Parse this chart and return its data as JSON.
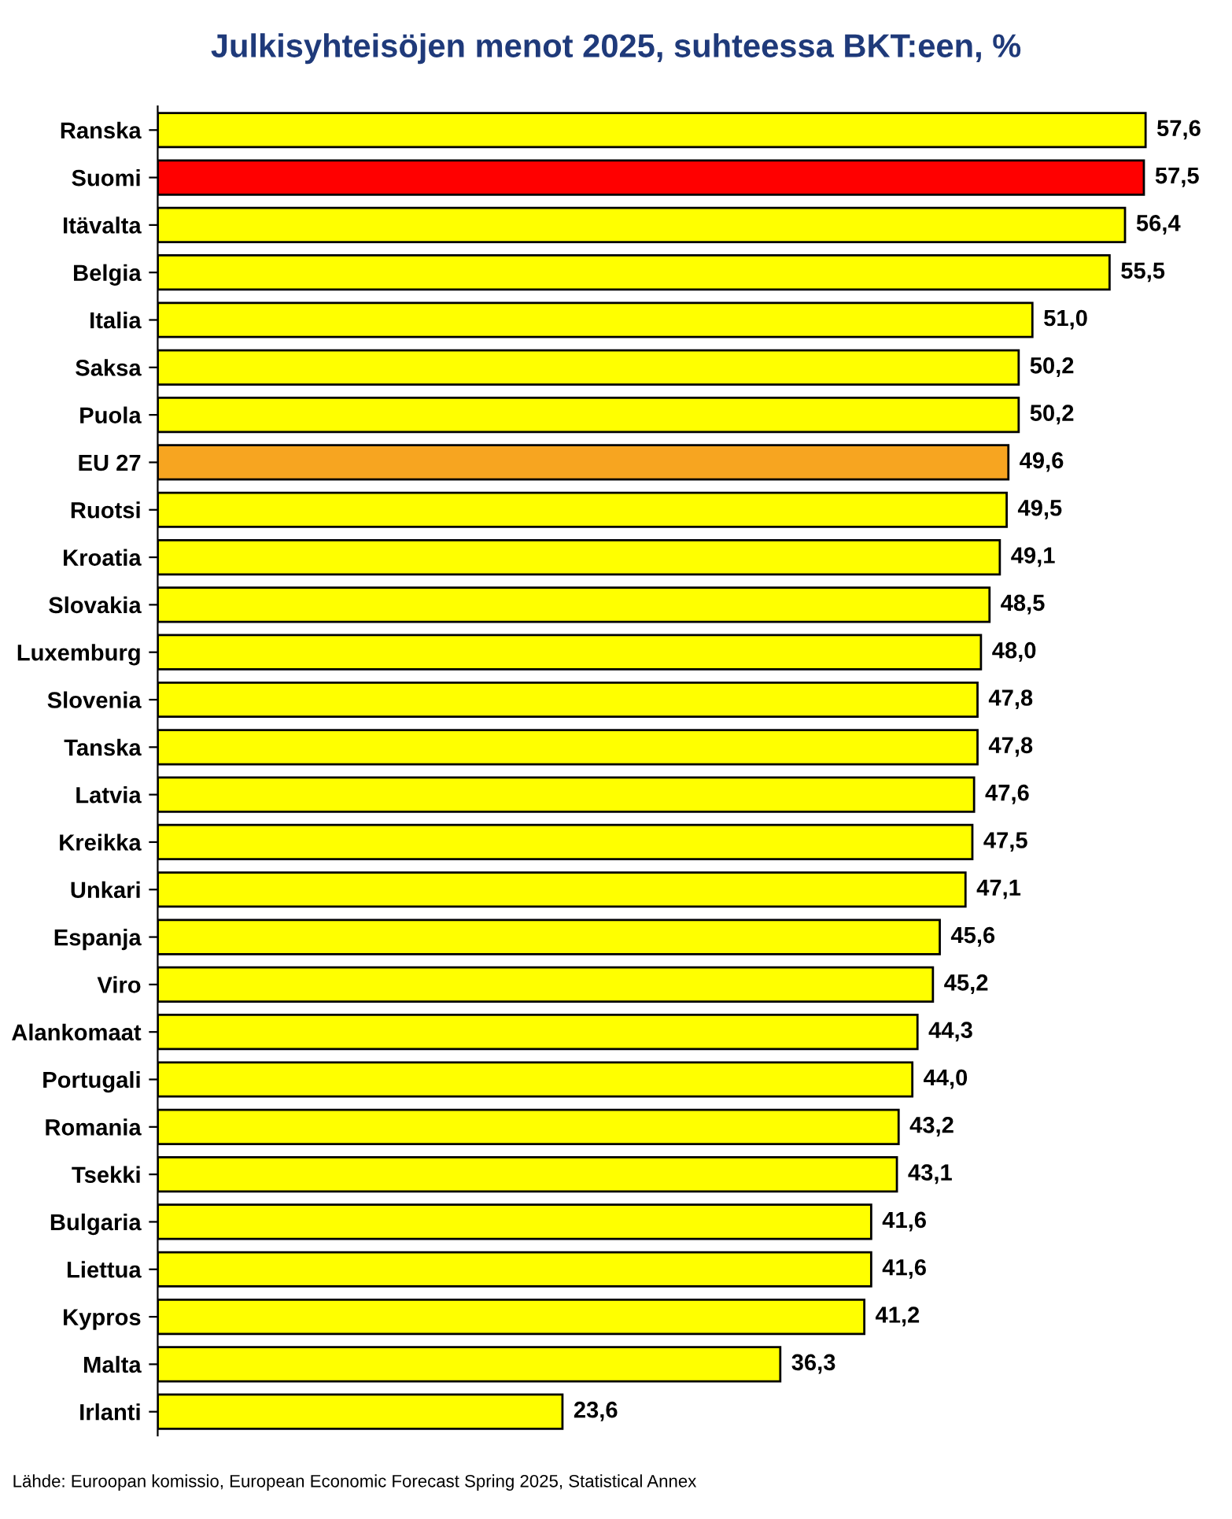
{
  "chart_data": {
    "type": "bar",
    "orientation": "horizontal",
    "title": "Julkisyhteisöjen menot 2025, suhteessa BKT:een, %",
    "categories": [
      "Ranska",
      "Suomi",
      "Itävalta",
      "Belgia",
      "Italia",
      "Saksa",
      "Puola",
      "EU 27",
      "Ruotsi",
      "Kroatia",
      "Slovakia",
      "Luxemburg",
      "Slovenia",
      "Tanska",
      "Latvia",
      "Kreikka",
      "Unkari",
      "Espanja",
      "Viro",
      "Alankomaat",
      "Portugali",
      "Romania",
      "Tsekki",
      "Bulgaria",
      "Liettua",
      "Kypros",
      "Malta",
      "Irlanti"
    ],
    "values": [
      57.6,
      57.5,
      56.4,
      55.5,
      51.0,
      50.2,
      50.2,
      49.6,
      49.5,
      49.1,
      48.5,
      48.0,
      47.8,
      47.8,
      47.6,
      47.5,
      47.1,
      45.6,
      45.2,
      44.3,
      44.0,
      43.2,
      43.1,
      41.6,
      41.6,
      41.2,
      36.3,
      23.6
    ],
    "value_labels": [
      "57,6",
      "57,5",
      "56,4",
      "55,5",
      "51,0",
      "50,2",
      "50,2",
      "49,6",
      "49,5",
      "49,1",
      "48,5",
      "48,0",
      "47,8",
      "47,8",
      "47,6",
      "47,5",
      "47,1",
      "45,6",
      "45,2",
      "44,3",
      "44,0",
      "43,2",
      "43,1",
      "41,6",
      "41,6",
      "41,2",
      "36,3",
      "23,6"
    ],
    "colors": [
      "#ffff00",
      "#ff0000",
      "#ffff00",
      "#ffff00",
      "#ffff00",
      "#ffff00",
      "#ffff00",
      "#f7a520",
      "#ffff00",
      "#ffff00",
      "#ffff00",
      "#ffff00",
      "#ffff00",
      "#ffff00",
      "#ffff00",
      "#ffff00",
      "#ffff00",
      "#ffff00",
      "#ffff00",
      "#ffff00",
      "#ffff00",
      "#ffff00",
      "#ffff00",
      "#ffff00",
      "#ffff00",
      "#ffff00",
      "#ffff00",
      "#ffff00"
    ],
    "tick_labels": "y",
    "grid": false,
    "legend": false,
    "annotations": [
      "Lähde: Euroopan komissio, European Economic Forecast Spring 2025, Statistical Annex"
    ]
  }
}
